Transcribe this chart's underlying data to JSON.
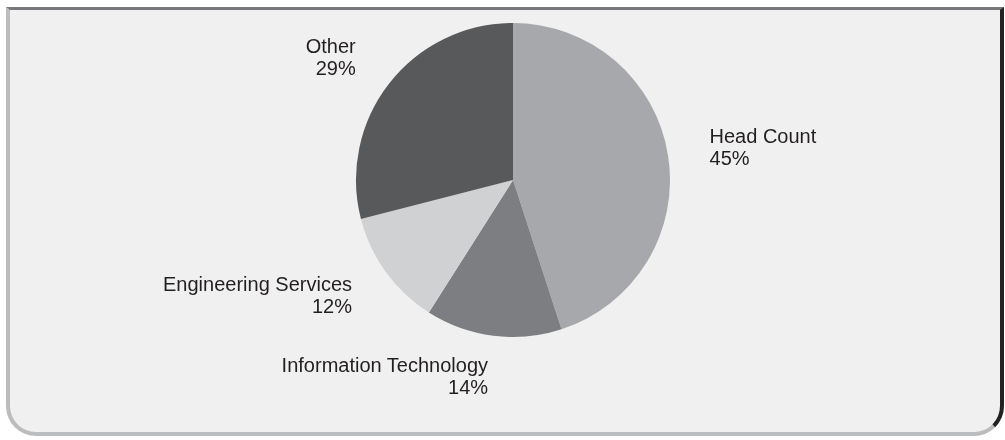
{
  "chart_data": {
    "type": "pie",
    "categories": [
      "Head Count",
      "Information Technology",
      "Engineering Services",
      "Other"
    ],
    "values": [
      45,
      14,
      12,
      29
    ],
    "value_labels": [
      "45%",
      "14%",
      "12%",
      "29%"
    ],
    "colors": [
      "#a7a8ab",
      "#7d7e81",
      "#d0d1d3",
      "#58595b"
    ],
    "legend": false
  }
}
